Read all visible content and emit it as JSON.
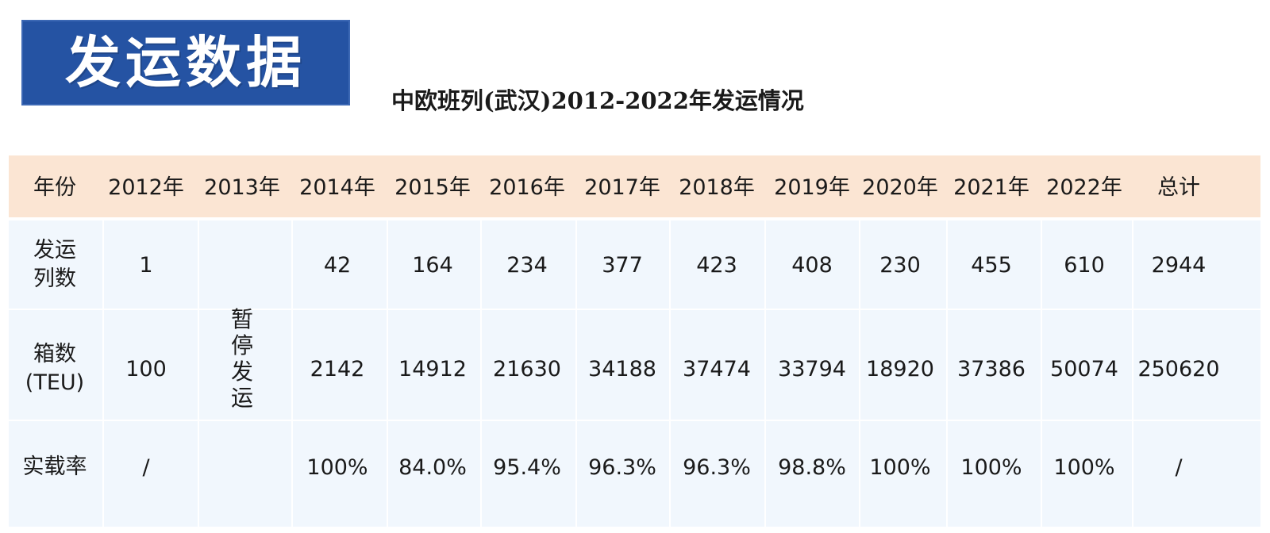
{
  "banner": {
    "title": "发运数据"
  },
  "subtitle": "中欧班列(武汉)2012-2022年发运情况",
  "table": {
    "headers": [
      "年份",
      "2012年",
      "2013年",
      "2014年",
      "2015年",
      "2016年",
      "2017年",
      "2018年",
      "2019年",
      "2020年",
      "2021年",
      "2022年",
      "总计"
    ],
    "suspended_note": "暂停发运",
    "rows": [
      {
        "label": "发运\n列数",
        "values": [
          "1",
          "",
          "42",
          "164",
          "234",
          "377",
          "423",
          "408",
          "230",
          "455",
          "610",
          "2944"
        ]
      },
      {
        "label": "箱数\n(TEU)",
        "values": [
          "100",
          "",
          "2142",
          "14912",
          "21630",
          "34188",
          "37474",
          "33794",
          "18920",
          "37386",
          "50074",
          "250620"
        ]
      },
      {
        "label": "实载率",
        "values": [
          "/",
          "",
          "100%",
          "84.0%",
          "95.4%",
          "96.3%",
          "96.3%",
          "98.8%",
          "100%",
          "100%",
          "100%",
          "/"
        ]
      }
    ]
  },
  "colors": {
    "banner_bg": "#2553a3",
    "header_bg": "#fbe5d3",
    "body_bg": "#f1f7fd"
  }
}
